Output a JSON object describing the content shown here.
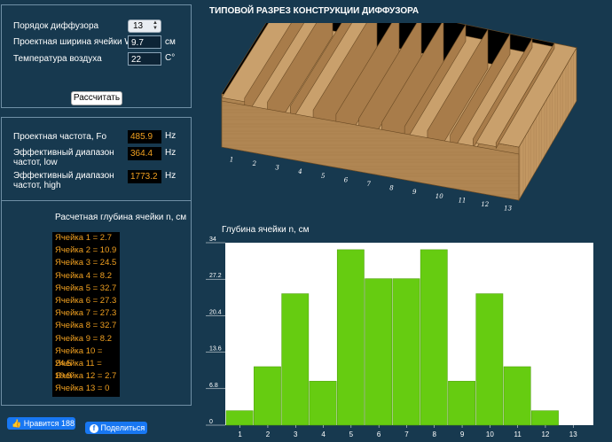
{
  "inputs": {
    "order_label": "Порядок диффузора",
    "order_value": "13",
    "width_label": "Проектная ширина ячейки W",
    "width_value": "9.7",
    "width_unit": "см",
    "temp_label": "Температура воздуха",
    "temp_value": "22",
    "temp_unit": "C°",
    "calc_button": "Рассчитать"
  },
  "results": {
    "freq_label": "Проектная частота, Fo",
    "freq_value": "485.9",
    "freq_unit": "Hz",
    "low_label": "Эффективный диапазон частот, low",
    "low_value": "364.4",
    "low_unit": "Hz",
    "high_label": "Эффективный диапазон частот, high",
    "high_value": "1773.2",
    "high_unit": "Hz"
  },
  "depths": {
    "title": "Расчетная глубина ячейки n, см",
    "items": [
      "Ячейка 1 = 2.7",
      "Ячейка 2 = 10.9",
      "Ячейка 3 = 24.5",
      "Ячейка 4 = 8.2",
      "Ячейка 5 = 32.7",
      "Ячейка 6 = 27.3",
      "Ячейка 7 = 27.3",
      "Ячейка 8 = 32.7",
      "Ячейка 9 = 8.2",
      "Ячейка 10 = 24.5",
      "Ячейка 11 = 10.9",
      "Ячейка 12 = 2.7",
      "Ячейка 13 = 0"
    ]
  },
  "social": {
    "like_label": "Нравится 188",
    "share_label": "Поделиться"
  },
  "diagram": {
    "title": "ТИПОВОЙ РАЗРЕЗ КОНСТРУКЦИИ ДИФФУЗОРА",
    "cell_labels": [
      "1",
      "2",
      "3",
      "4",
      "5",
      "6",
      "7",
      "8",
      "9",
      "10",
      "11",
      "12",
      "13"
    ],
    "wood_color": "#b08653",
    "shadow_color": "#000000"
  },
  "chart_data": {
    "type": "bar",
    "title": "Глубина ячейки n, см",
    "categories": [
      "1",
      "2",
      "3",
      "4",
      "5",
      "6",
      "7",
      "8",
      "9",
      "10",
      "11",
      "12",
      "13"
    ],
    "values": [
      2.7,
      10.9,
      24.5,
      8.2,
      32.7,
      27.3,
      27.3,
      32.7,
      8.2,
      24.5,
      10.9,
      2.7,
      0
    ],
    "yticks": [
      "0",
      "6.8",
      "13.6",
      "20.4",
      "27.2",
      "34"
    ],
    "ylim": [
      0,
      34
    ],
    "bar_color": "#66cc11"
  }
}
